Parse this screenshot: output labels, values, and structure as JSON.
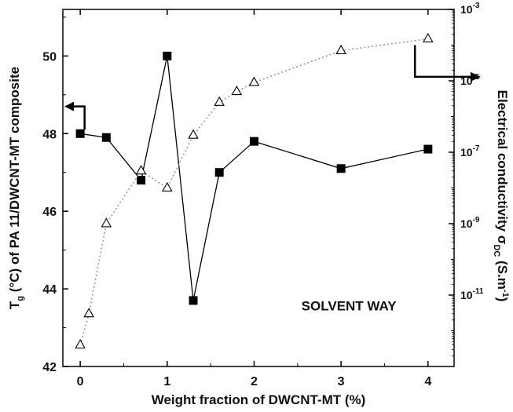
{
  "chart_data": {
    "type": "line",
    "xlabel": "Weight fraction of DWCNT-MT (%)",
    "xlim": [
      -0.2,
      4.3
    ],
    "x_ticks": [
      0,
      1,
      2,
      3,
      4
    ],
    "left_axis": {
      "label_parts": [
        "T",
        "g",
        " (°C) of PA 11/DWCNT-MT composite"
      ],
      "ylim": [
        42,
        51.2
      ],
      "ticks": [
        42,
        44,
        46,
        48,
        50
      ]
    },
    "right_axis": {
      "label_parts": [
        "Electrical conductivity σ",
        "DC",
        " (S.m",
        "-1",
        ")"
      ],
      "scale": "log",
      "ylim": [
        1e-13,
        0.001
      ],
      "tick_base": "10",
      "ticks": [
        -11,
        -9,
        -7,
        -5,
        -3
      ]
    },
    "series": [
      {
        "axis": "left",
        "marker": "filled-square",
        "line": "solid",
        "color": "#000000",
        "x": [
          0,
          0.3,
          0.7,
          1.0,
          1.3,
          1.6,
          2.0,
          3.0,
          4.0
        ],
        "y": [
          48.0,
          47.9,
          46.8,
          50.0,
          43.7,
          47.0,
          47.8,
          47.1,
          47.6
        ]
      },
      {
        "axis": "right",
        "marker": "open-triangle",
        "line": "dotted",
        "color": "#999999",
        "x": [
          0,
          0.1,
          0.3,
          0.7,
          1.0,
          1.3,
          1.6,
          1.8,
          2.0,
          3.0,
          4.0
        ],
        "y": [
          4e-13,
          3e-12,
          1e-09,
          3e-08,
          1e-08,
          3e-07,
          2.5e-06,
          5e-06,
          9e-06,
          7e-05,
          0.00015
        ]
      }
    ],
    "annotations": [
      "SOLVENT WAY"
    ]
  }
}
